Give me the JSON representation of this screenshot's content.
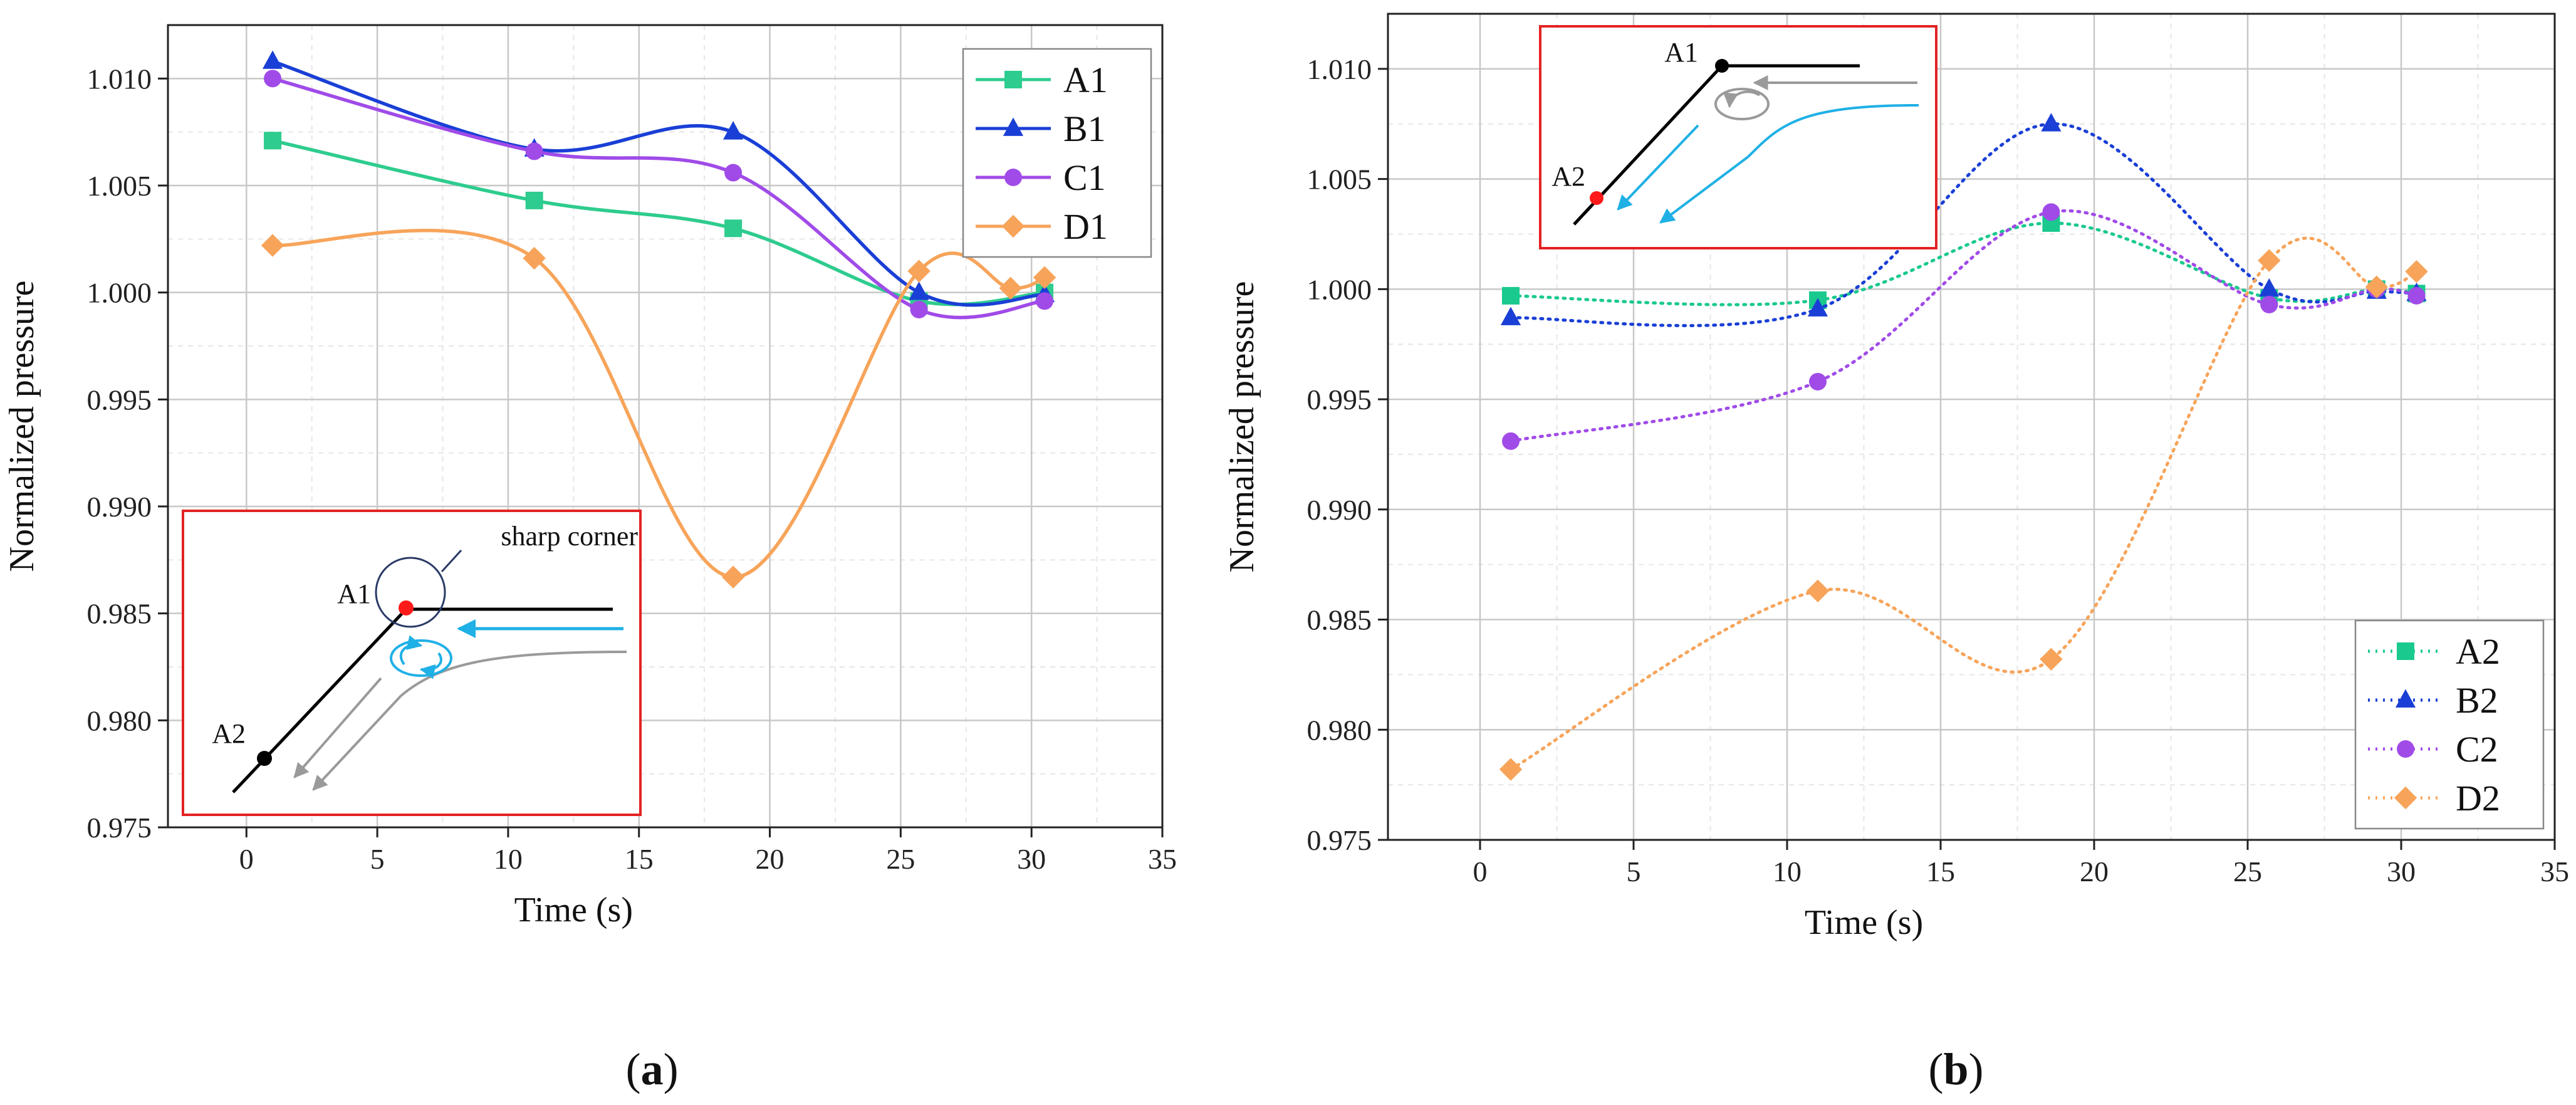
{
  "chart_data": [
    {
      "type": "line",
      "panel": "a",
      "panel_label": "a",
      "xlabel": "Time (s)",
      "ylabel": "Normalized pressure",
      "xlim": [
        -3,
        35
      ],
      "ylim": [
        0.975,
        1.0125
      ],
      "xticks": [
        0,
        5,
        10,
        15,
        20,
        25,
        30,
        35
      ],
      "yticks": [
        0.975,
        0.98,
        0.985,
        0.99,
        0.995,
        1.0,
        1.005,
        1.01
      ],
      "ytick_labels": [
        "0.975",
        "0.980",
        "0.985",
        "0.990",
        "0.995",
        "1.000",
        "1.005",
        "1.010"
      ],
      "line_style": "solid",
      "legend_position": "top-right",
      "series": [
        {
          "name": "A1",
          "color": "#2ecc8e",
          "marker": "square",
          "x": [
            1,
            11,
            18.6,
            25.7,
            30.5
          ],
          "y": [
            1.0071,
            1.0043,
            1.003,
            0.9996,
            1.0
          ]
        },
        {
          "name": "B1",
          "color": "#1a3fd6",
          "marker": "triangle",
          "x": [
            1,
            11,
            18.6,
            25.7,
            30.5
          ],
          "y": [
            1.0108,
            1.0067,
            1.0075,
            1.0,
            0.9999
          ]
        },
        {
          "name": "C1",
          "color": "#a04be8",
          "marker": "circle",
          "x": [
            1,
            11,
            18.6,
            25.7,
            30.5
          ],
          "y": [
            1.01,
            1.0066,
            1.0056,
            0.9992,
            0.9996
          ]
        },
        {
          "name": "D1",
          "color": "#f7a45a",
          "marker": "diamond",
          "x": [
            1,
            11,
            18.6,
            25.7,
            29.2,
            30.5
          ],
          "y": [
            1.0022,
            1.0016,
            0.9867,
            1.001,
            1.0002,
            1.0007
          ]
        }
      ],
      "inset": {
        "labels": {
          "corner": "sharp corner",
          "p1": "A1",
          "p2": "A2"
        }
      }
    },
    {
      "type": "line",
      "panel": "b",
      "panel_label": "b",
      "xlabel": "Time (s)",
      "ylabel": "Normalized pressure",
      "xlim": [
        -3,
        35
      ],
      "ylim": [
        0.975,
        1.0125
      ],
      "xticks": [
        0,
        5,
        10,
        15,
        20,
        25,
        30,
        35
      ],
      "yticks": [
        0.975,
        0.98,
        0.985,
        0.99,
        0.995,
        1.0,
        1.005,
        1.01
      ],
      "ytick_labels": [
        "0.975",
        "0.980",
        "0.985",
        "0.990",
        "0.995",
        "1.000",
        "1.005",
        "1.010"
      ],
      "line_style": "dotted",
      "legend_position": "bottom-right",
      "series": [
        {
          "name": "A2",
          "color": "#19c98e",
          "marker": "square",
          "x": [
            1,
            11,
            18.6,
            25.7,
            29.2,
            30.5
          ],
          "y": [
            0.9997,
            0.9995,
            1.003,
            0.9996,
            1.0,
            0.9998
          ]
        },
        {
          "name": "B2",
          "color": "#1a3fd6",
          "marker": "triangle",
          "x": [
            1,
            11,
            18.6,
            25.7,
            29.2,
            30.5
          ],
          "y": [
            0.9987,
            0.9991,
            1.0075,
            1.0,
            0.9999,
            0.9998
          ]
        },
        {
          "name": "C2",
          "color": "#a04be8",
          "marker": "circle",
          "x": [
            1,
            11,
            18.6,
            25.7,
            29.2,
            30.5
          ],
          "y": [
            0.9931,
            0.9958,
            1.0035,
            0.9993,
            1.0,
            0.9997
          ]
        },
        {
          "name": "D2",
          "color": "#f7a45a",
          "marker": "diamond",
          "x": [
            1,
            11,
            18.6,
            25.7,
            29.2,
            30.5
          ],
          "y": [
            0.9782,
            0.9863,
            0.9832,
            1.0013,
            1.0001,
            1.0008
          ]
        }
      ],
      "inset": {
        "labels": {
          "p1": "A1",
          "p2": "A2"
        }
      }
    }
  ],
  "colors": {
    "inset_border": "#e32222",
    "flow_blue": "#1fb0e6",
    "flow_gray": "#9a9a9a",
    "point_red": "#ff1a1a"
  }
}
